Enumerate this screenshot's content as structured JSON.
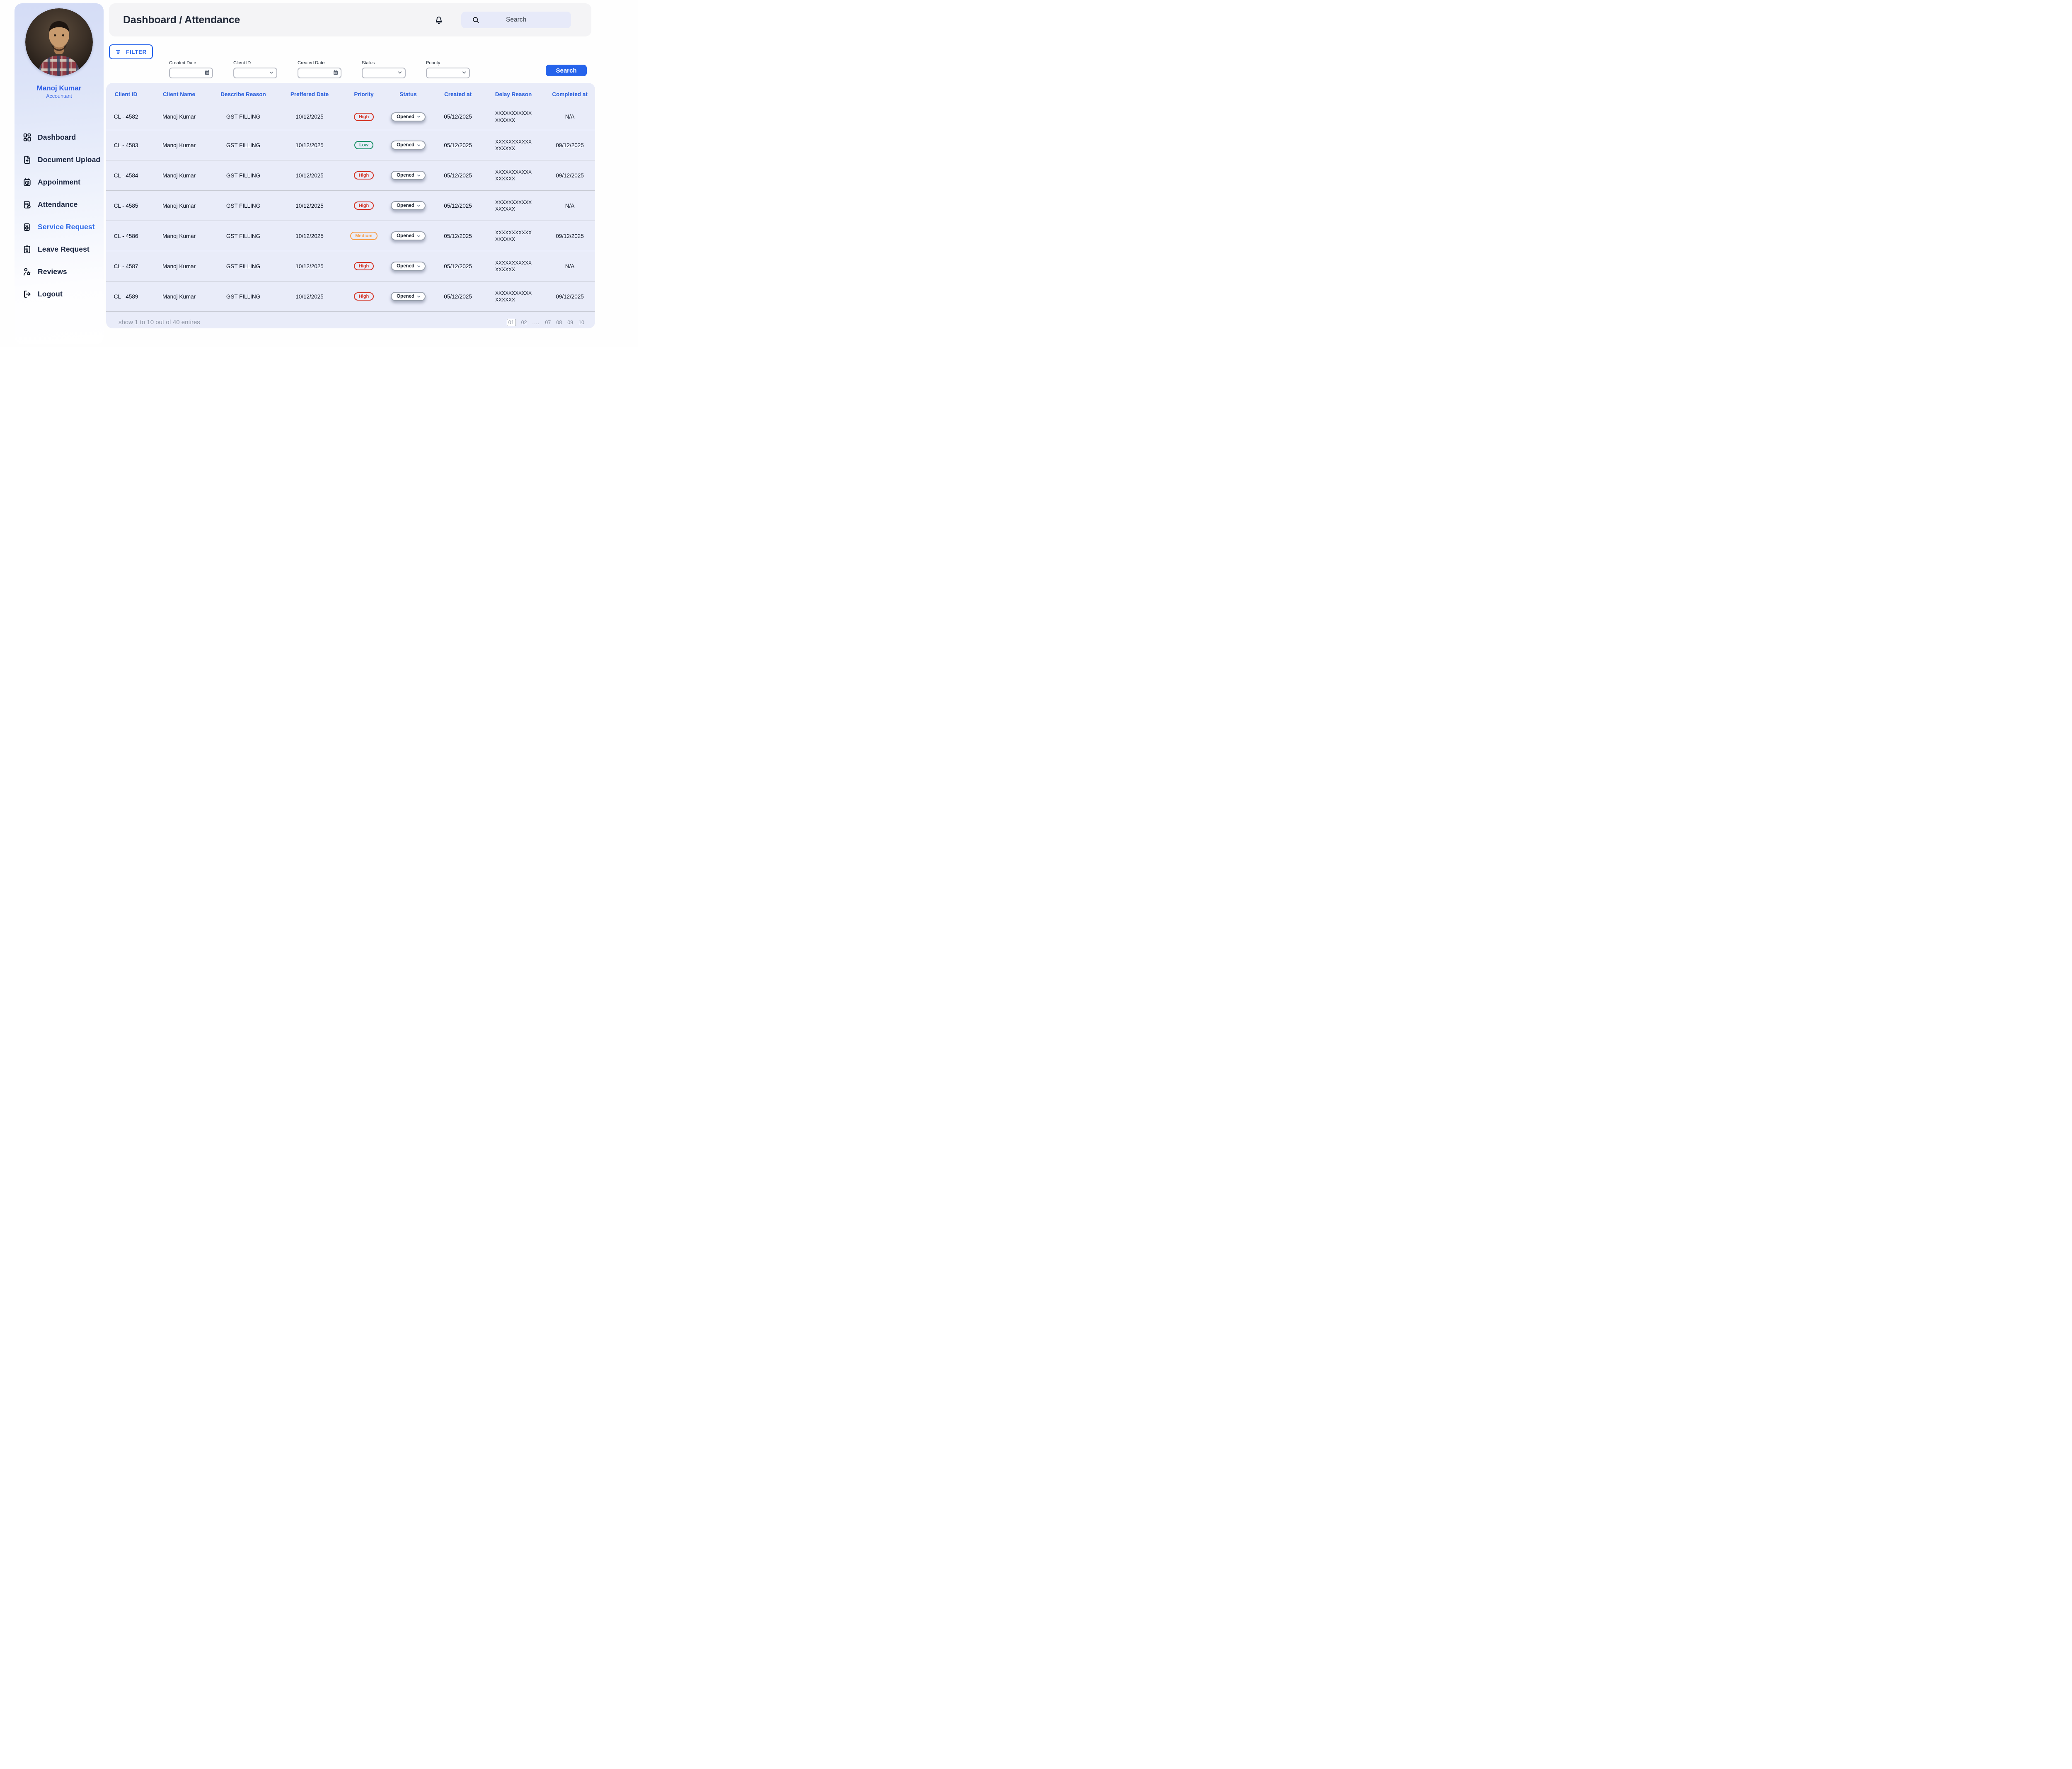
{
  "header": {
    "title": "Dashboard / Attendance",
    "search_placeholder": "Search",
    "bell_icon": "bell-icon",
    "search_icon": "search-icon"
  },
  "sidebar": {
    "profile": {
      "name": "Manoj Kumar",
      "role": "Accountant"
    },
    "nav": [
      {
        "label": "Dashboard",
        "icon": "dashboard-grid-icon",
        "active": false
      },
      {
        "label": "Document Upload",
        "icon": "document-upload-icon",
        "active": false
      },
      {
        "label": "Appoinment",
        "icon": "appointment-calendar-icon",
        "active": false
      },
      {
        "label": "Attendance",
        "icon": "attendance-clipboard-icon",
        "active": false
      },
      {
        "label": "Service Request",
        "icon": "service-request-icon",
        "active": true
      },
      {
        "label": "Leave Request",
        "icon": "leave-request-icon",
        "active": false
      },
      {
        "label": "Reviews",
        "icon": "reviews-icon",
        "active": false
      },
      {
        "label": "Logout",
        "icon": "logout-icon",
        "active": false
      }
    ]
  },
  "filters": {
    "filter_button": {
      "label": "FILTER",
      "icon": "filter-lines-icon"
    },
    "fields": [
      {
        "label": "Created Date",
        "icon": "calendar-icon",
        "value": ""
      },
      {
        "label": "Client ID",
        "icon": "chevron-down-icon",
        "value": ""
      },
      {
        "label": "Created Date",
        "icon": "calendar-icon",
        "value": ""
      },
      {
        "label": "Status",
        "icon": "chevron-down-icon",
        "value": ""
      },
      {
        "label": "Priority",
        "icon": "chevron-down-icon",
        "value": ""
      }
    ],
    "search_button_label": "Search"
  },
  "table": {
    "columns": [
      "Client ID",
      "Client Name",
      "Describe Reason",
      "Preffered Date",
      "Priority",
      "Status",
      "Created at",
      "Delay Reason",
      "Completed at"
    ],
    "rows": [
      {
        "client_id": "CL - 4582",
        "client_name": "Manoj Kumar",
        "describe_reason": "GST FILLING",
        "preffered_date": "10/12/2025",
        "priority": "High",
        "status": "Opened",
        "created_at": "05/12/2025",
        "delay_reason": [
          "XXXXXXXXXXX",
          "XXXXXX"
        ],
        "completed_at": "N/A"
      },
      {
        "client_id": "CL - 4583",
        "client_name": "Manoj Kumar",
        "describe_reason": "GST FILLING",
        "preffered_date": "10/12/2025",
        "priority": "Low",
        "status": "Opened",
        "created_at": "05/12/2025",
        "delay_reason": [
          "XXXXXXXXXXX",
          "XXXXXX"
        ],
        "completed_at": "09/12/2025"
      },
      {
        "client_id": "CL - 4584",
        "client_name": "Manoj Kumar",
        "describe_reason": "GST FILLING",
        "preffered_date": "10/12/2025",
        "priority": "High",
        "status": "Opened",
        "created_at": "05/12/2025",
        "delay_reason": [
          "XXXXXXXXXXX",
          "XXXXXX"
        ],
        "completed_at": "09/12/2025"
      },
      {
        "client_id": "CL - 4585",
        "client_name": "Manoj Kumar",
        "describe_reason": "GST FILLING",
        "preffered_date": "10/12/2025",
        "priority": "High",
        "status": "Opened",
        "created_at": "05/12/2025",
        "delay_reason": [
          "XXXXXXXXXXX",
          "XXXXXX"
        ],
        "completed_at": "N/A"
      },
      {
        "client_id": "CL - 4586",
        "client_name": "Manoj Kumar",
        "describe_reason": "GST FILLING",
        "preffered_date": "10/12/2025",
        "priority": "Medium",
        "status": "Opened",
        "created_at": "05/12/2025",
        "delay_reason": [
          "XXXXXXXXXXX",
          "XXXXXX"
        ],
        "completed_at": "09/12/2025"
      },
      {
        "client_id": "CL - 4587",
        "client_name": "Manoj Kumar",
        "describe_reason": "GST FILLING",
        "preffered_date": "10/12/2025",
        "priority": "High",
        "status": "Opened",
        "created_at": "05/12/2025",
        "delay_reason": [
          "XXXXXXXXXXX",
          "XXXXXX"
        ],
        "completed_at": "N/A"
      },
      {
        "client_id": "CL - 4589",
        "client_name": "Manoj Kumar",
        "describe_reason": "GST FILLING",
        "preffered_date": "10/12/2025",
        "priority": "High",
        "status": "Opened",
        "created_at": "05/12/2025",
        "delay_reason": [
          "XXXXXXXXXXX",
          "XXXXXX"
        ],
        "completed_at": "09/12/2025"
      }
    ]
  },
  "footer": {
    "summary": "show 1 to 10 out of 40 entires",
    "pages": [
      "01",
      "02",
      "....",
      "07",
      "08",
      "09",
      "10"
    ],
    "active_page": "01"
  },
  "colors": {
    "accent_blue": "#2563eb",
    "table_header_blue": "#2d61dd",
    "active_nav_blue": "#2e6ae8",
    "profile_name_blue": "#2b5ce6",
    "priority_high": "#d43425",
    "priority_low": "#189066",
    "priority_medium": "#f6a04d",
    "table_bg": "#e9ecf9",
    "topbar_bg": "#f4f4f6",
    "search_pill_bg": "#e7eaf9",
    "sidebar_gradient_top": "#d4dcf6",
    "footer_text_grey": "#8a91a0"
  }
}
